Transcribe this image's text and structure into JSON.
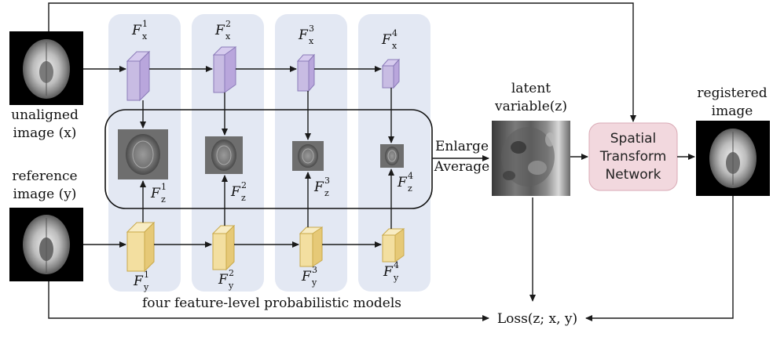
{
  "labels": {
    "unaligned_line1": "unaligned",
    "unaligned_line2": "image (x)",
    "reference_line1": "reference",
    "reference_line2": "image (y)",
    "latent_line1": "latent",
    "latent_line2": "variable(z)",
    "registered_line1": "registered",
    "registered_line2": "image",
    "enlarge": "Enlarge",
    "average": "Average",
    "stn_line1": "Spatial",
    "stn_line2": "Transform",
    "stn_line3": "Network",
    "models_caption": "four feature-level probabilistic models",
    "loss": "Loss(z; x, y)"
  },
  "features": {
    "fx": [
      {
        "base": "F",
        "sub": "x",
        "sup": "1"
      },
      {
        "base": "F",
        "sub": "x",
        "sup": "2"
      },
      {
        "base": "F",
        "sub": "x",
        "sup": "3"
      },
      {
        "base": "F",
        "sub": "x",
        "sup": "4"
      }
    ],
    "fy": [
      {
        "base": "F",
        "sub": "y",
        "sup": "1"
      },
      {
        "base": "F",
        "sub": "y",
        "sup": "2"
      },
      {
        "base": "F",
        "sub": "y",
        "sup": "3"
      },
      {
        "base": "F",
        "sub": "y",
        "sup": "4"
      }
    ],
    "fz": [
      {
        "base": "F",
        "sub": "z",
        "sup": "1"
      },
      {
        "base": "F",
        "sub": "z",
        "sup": "2"
      },
      {
        "base": "F",
        "sub": "z",
        "sup": "3"
      },
      {
        "base": "F",
        "sub": "z",
        "sup": "4"
      }
    ]
  },
  "colors": {
    "column_bg": "#e3e8f3",
    "fx_block": "#b9a6dc",
    "fx_block_dark": "#8b7bb8",
    "fy_block": "#f3dfa0",
    "fy_block_dark": "#c9a94a",
    "stn_fill": "#f2d8de",
    "stn_stroke": "#d9aab5"
  }
}
